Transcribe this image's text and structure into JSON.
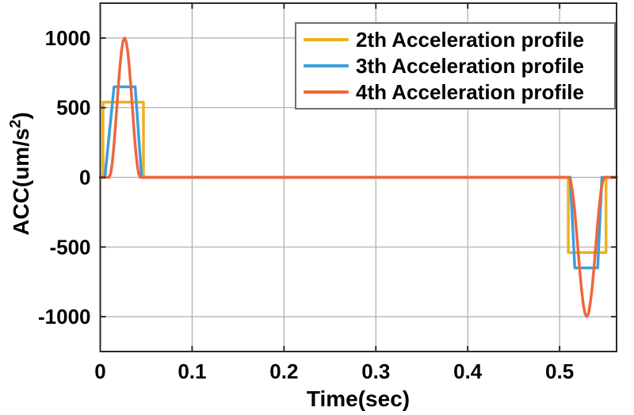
{
  "figure": {
    "xlabel": "Time(sec)",
    "ylabel": {
      "pre": "ACC(um/s",
      "sup": "2",
      "post": ")"
    }
  },
  "chart_data": {
    "type": "line",
    "title": "",
    "xlabel": "Time(sec)",
    "ylabel": "ACC(um/s^2)",
    "xlim": [
      0,
      0.562
    ],
    "ylim": [
      -1250,
      1250
    ],
    "x_ticks": [
      0,
      0.1,
      0.2,
      0.3,
      0.4,
      0.5
    ],
    "x_tick_labels": [
      "0",
      "0.1",
      "0.2",
      "0.3",
      "0.4",
      "0.5"
    ],
    "y_ticks": [
      -1000,
      -500,
      0,
      500,
      1000
    ],
    "y_tick_labels": [
      "-1000",
      "-500",
      "0",
      "500",
      "1000"
    ],
    "grid": true,
    "legend_position": "top-right",
    "grid_color": "#ADADAD",
    "axis_color": "#2B2B2B",
    "line_width": 3.5,
    "series": [
      {
        "name": "2th Acceleration profile",
        "color": "#EDB120",
        "shape": "square-pulse",
        "amplitude": 540,
        "points": [
          [
            0,
            0
          ],
          [
            0.003,
            0
          ],
          [
            0.003,
            540
          ],
          [
            0.047,
            540
          ],
          [
            0.047,
            0
          ],
          [
            0.5095,
            0
          ],
          [
            0.5095,
            -540
          ],
          [
            0.5505,
            -540
          ],
          [
            0.5505,
            0
          ],
          [
            0.562,
            0
          ]
        ]
      },
      {
        "name": "3th Acceleration profile",
        "color": "#3B9FDB",
        "shape": "trapezoid-pulse",
        "amplitude": 650,
        "points": [
          [
            0,
            0
          ],
          [
            0.005,
            0
          ],
          [
            0.015,
            650
          ],
          [
            0.038,
            650
          ],
          [
            0.045,
            0
          ],
          [
            0.5115,
            0
          ],
          [
            0.5165,
            -650
          ],
          [
            0.5415,
            -650
          ],
          [
            0.546,
            0
          ],
          [
            0.562,
            0
          ]
        ]
      },
      {
        "name": "4th Acceleration profile",
        "color": "#EF663B",
        "shape": "smooth-bell-pulse",
        "amplitude": 1000,
        "points": [
          [
            0,
            0
          ],
          [
            0.0095,
            0
          ],
          [
            0.0112,
            24
          ],
          [
            0.0129,
            95
          ],
          [
            0.0146,
            206
          ],
          [
            0.0163,
            345
          ],
          [
            0.018,
            500
          ],
          [
            0.0197,
            655
          ],
          [
            0.0214,
            794
          ],
          [
            0.0231,
            905
          ],
          [
            0.0248,
            976
          ],
          [
            0.0265,
            1000
          ],
          [
            0.0282,
            976
          ],
          [
            0.0299,
            905
          ],
          [
            0.0316,
            794
          ],
          [
            0.0333,
            655
          ],
          [
            0.035,
            500
          ],
          [
            0.0367,
            345
          ],
          [
            0.0384,
            206
          ],
          [
            0.0401,
            95
          ],
          [
            0.0418,
            24
          ],
          [
            0.0435,
            0
          ],
          [
            0.51,
            0
          ],
          [
            0.512,
            -24
          ],
          [
            0.5139,
            -95
          ],
          [
            0.5159,
            -206
          ],
          [
            0.5178,
            -345
          ],
          [
            0.5198,
            -500
          ],
          [
            0.5217,
            -655
          ],
          [
            0.5237,
            -794
          ],
          [
            0.5256,
            -905
          ],
          [
            0.5276,
            -976
          ],
          [
            0.5295,
            -1000
          ],
          [
            0.5315,
            -976
          ],
          [
            0.5334,
            -905
          ],
          [
            0.5354,
            -794
          ],
          [
            0.5373,
            -655
          ],
          [
            0.5393,
            -500
          ],
          [
            0.5412,
            -345
          ],
          [
            0.5432,
            -206
          ],
          [
            0.5451,
            -95
          ],
          [
            0.5471,
            -24
          ],
          [
            0.549,
            0
          ],
          [
            0.562,
            0
          ]
        ]
      }
    ]
  }
}
